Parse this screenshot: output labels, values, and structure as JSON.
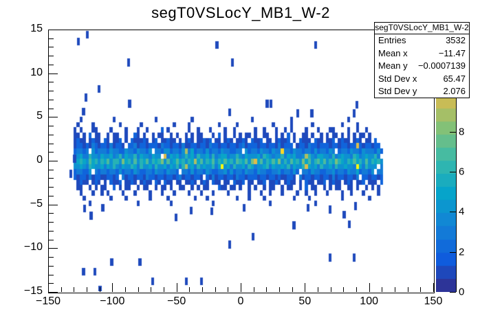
{
  "title": "segT0VSLocY_MB1_W-2",
  "stats": {
    "header": "segT0VSLocY_MB1_W-2",
    "rows": [
      {
        "label": "Entries",
        "value": "3532"
      },
      {
        "label": "Mean x",
        "value": "−11.47"
      },
      {
        "label": "Mean y",
        "value": "−0.0007139"
      },
      {
        "label": "Std Dev x",
        "value": "65.47"
      },
      {
        "label": "Std Dev y",
        "value": "2.076"
      }
    ]
  },
  "axes": {
    "x": {
      "min": -150,
      "max": 150,
      "major": [
        -150,
        -100,
        -50,
        0,
        50,
        100,
        150
      ],
      "labels": [
        "−150",
        "−100",
        "−50",
        "0",
        "50",
        "100",
        "150"
      ],
      "minor_step": 10
    },
    "y": {
      "min": -15,
      "max": 15,
      "major": [
        -15,
        -10,
        -5,
        0,
        5,
        10,
        15
      ],
      "labels": [
        "−15",
        "−10",
        "−5",
        "0",
        "5",
        "10",
        "15"
      ],
      "minor_step": 1
    },
    "z": {
      "min": 0,
      "max": 13.1,
      "major": [
        0,
        2,
        4,
        6,
        8
      ],
      "labels": [
        "0",
        "2",
        "4",
        "6",
        "8"
      ]
    }
  },
  "palette": {
    "name": "kBird",
    "steps": 20,
    "anchors": [
      [
        0.0,
        "#352a87"
      ],
      [
        0.125,
        "#0f5cdd"
      ],
      [
        0.25,
        "#1481d6"
      ],
      [
        0.375,
        "#06a4ca"
      ],
      [
        0.5,
        "#38b9ab"
      ],
      [
        0.625,
        "#83c177"
      ],
      [
        0.75,
        "#d9bb4e"
      ],
      [
        0.875,
        "#fec832"
      ],
      [
        1.0,
        "#f9fb0e"
      ]
    ]
  },
  "chart_data": {
    "type": "heatmap",
    "title": "segT0VSLocY_MB1_W-2",
    "xlim": [
      -150,
      150
    ],
    "ylim": [
      -15,
      15
    ],
    "zlim": [
      0,
      13.1
    ],
    "entries": 3532,
    "mean_x": -11.47,
    "mean_y": -0.0007139,
    "std_dev_x": 65.47,
    "std_dev_y": 2.076,
    "grid_off": true,
    "legend_position": "right-palette",
    "band": {
      "comment": "dense horizontal band of filled bins; rows listed top to bottom",
      "x_start": -129.5,
      "x_bin_width": 2.34,
      "y_bin_height": 0.6,
      "encoding": "each char is one x-bin: '.'=empty, '1'-'9'=count 1-9, 'a'=10,'b'=11,'c'=12,'d'=13",
      "y_centers": [
        4.8,
        4.2,
        3.6,
        3.0,
        2.4,
        1.8,
        1.2,
        0.6,
        0.0,
        -0.6,
        -1.2,
        -1.8,
        -2.4,
        -3.0,
        -3.6,
        -4.2,
        -4.8
      ],
      "rows": [
        "..1..........1.............1...........1...................1............1..................1........",
        ".1....1........1......1..........1....1.........1.....1...........1.....1......1.........1....1.....",
        "1.1...11....1....1...1..1....2.1......1..1...1....1..1......1..1...1..1.1....1...1...11....1..1..1...",
        "11.1.2.11..1.11..1..21.1..1.11..1.1..1.1.11...1.2.1..1.1.11.1..11..1.1.2.1..11.1..1.1.11.1.1.1.11.1..",
        "1211.1211.21.112.1.211121.12.11211.1.121.11212.11.121.1121.2112.11.12112.1.2111.211.112.1211.121.11.2",
        "12212132122131221.2231221222132212213112212213221221221231222122122131222.12213221222122122122a2122122.1",
        "23323.42333243322433243324.33244233249352332423324332233.423324332433c33243323324233243.2332433243332423",
        "34533644354453463544635443544. a3545346453644536345534464354445365434463545334964355443634544365345446 3.",
        "456547564657466485647465746568474575646595746574657564765748a574657584647564857467574658654657564746564",
        "4454365445354643544653644536445354636945364544635d45364453653445635445463544 6a5453644536445443d536444.3",
        "233224.3233233242332432233243324332.33242332432233424233243324332233423 3242.33243322334233243352332 4.33",
        "212213122112212.3122122132212212212312212 21.2131221221322122212212212112 21.3122122122131221221 3.2212212",
        ".1211.121.1.2112.1121.1211.21.211.11.1121.121.211.11.2112.11.112.1121.1211.1.211.112.1211.121.112.111.2",
        ".11..1.1.11..2.1.11..1.11..1.11.1..11..1.1.11...211.11.1..1.1..1.11..1.11..1.2.11..1.1.11..11.1..1.1.1.",
        "..1...1..1.1....1...1....1...1...1....1...1...1....1......1...1..1...1....1..1..1...1....1..1...1....1.",
        "...1........1....1.......1.....1........1...1.........1...1....1.........1....1..........1........1..",
        ".....1...............1..........1.............1..................1..............1..................."
      ]
    },
    "outliers": [
      [
        -120,
        14.5,
        1
      ],
      [
        -127,
        13.7,
        1
      ],
      [
        -19,
        13.3,
        1
      ],
      [
        58,
        13.3,
        1
      ],
      [
        -88,
        11.3,
        1
      ],
      [
        -7,
        11.3,
        1
      ],
      [
        -111,
        8.3,
        1
      ],
      [
        -121,
        7.3,
        1
      ],
      [
        -87,
        6.6,
        1
      ],
      [
        20,
        6.6,
        1
      ],
      [
        23,
        6.6,
        1
      ],
      [
        90,
        6.5,
        1
      ],
      [
        -123,
        5.7,
        1
      ],
      [
        -9,
        5.6,
        1
      ],
      [
        44,
        5.5,
        1
      ],
      [
        55,
        5.5,
        1
      ],
      [
        88,
        5.5,
        1
      ],
      [
        -130,
        0.3,
        1
      ],
      [
        -133,
        -1.4,
        1
      ],
      [
        -122,
        -5.4,
        1
      ],
      [
        -117,
        -6.2,
        1
      ],
      [
        -108,
        -5.3,
        1
      ],
      [
        -51,
        -6.4,
        1
      ],
      [
        -39,
        -5.6,
        1
      ],
      [
        -23,
        -5.7,
        1
      ],
      [
        2,
        -5.3,
        1
      ],
      [
        52,
        -5.3,
        1
      ],
      [
        69,
        -5.5,
        1
      ],
      [
        80,
        -6.1,
        1
      ],
      [
        89,
        -5.1,
        1
      ],
      [
        41,
        -7.3,
        1
      ],
      [
        84,
        -7.2,
        1
      ],
      [
        9,
        -8.6,
        1
      ],
      [
        -9,
        -9.5,
        1
      ],
      [
        -101,
        -11.5,
        1
      ],
      [
        -79,
        -11.5,
        1
      ],
      [
        69,
        -11,
        1
      ],
      [
        88,
        -11,
        1
      ],
      [
        -123,
        -12.6,
        1
      ],
      [
        -114,
        -12.6,
        1
      ],
      [
        -69,
        -13.7,
        1
      ],
      [
        -43,
        -13.7,
        1
      ],
      [
        -31,
        -13.7,
        1
      ],
      [
        -110,
        -14.7,
        1
      ]
    ]
  }
}
